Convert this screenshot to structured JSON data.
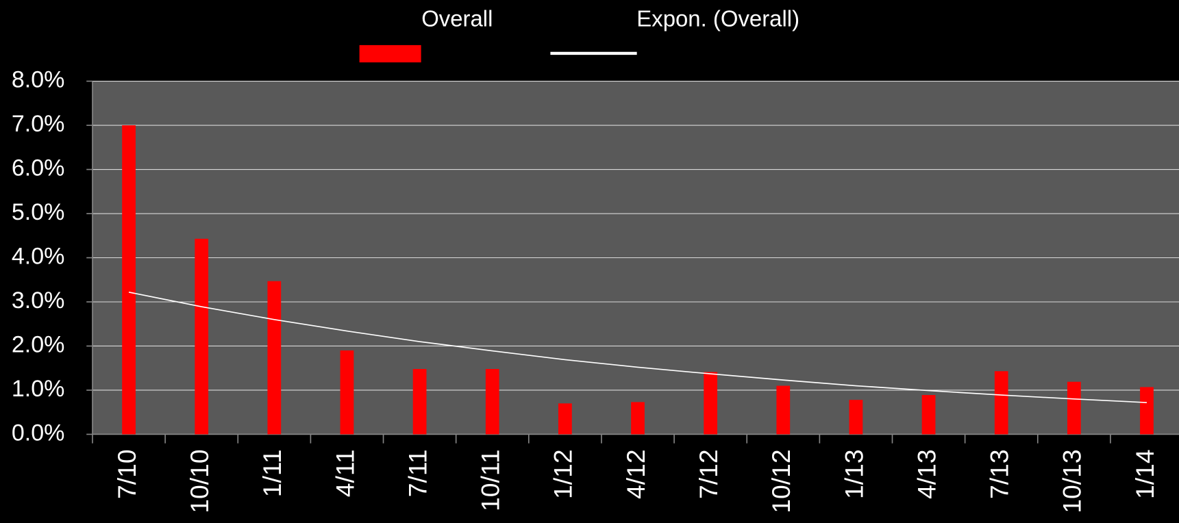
{
  "chart_data": {
    "type": "bar",
    "categories": [
      "7/10",
      "10/10",
      "1/11",
      "4/11",
      "7/11",
      "10/11",
      "1/12",
      "4/12",
      "7/12",
      "10/12",
      "1/13",
      "4/13",
      "7/13",
      "10/13",
      "1/14"
    ],
    "series": [
      {
        "name": "Overall",
        "type": "bar",
        "color": "#ff0000",
        "values": [
          7.0,
          4.43,
          3.47,
          1.9,
          1.48,
          1.48,
          0.7,
          0.73,
          1.41,
          1.1,
          0.78,
          0.89,
          1.43,
          1.19,
          1.07
        ]
      },
      {
        "name": "Expon. (Overall)",
        "type": "line",
        "color": "#ffffff",
        "values": [
          3.22,
          2.89,
          2.6,
          2.34,
          2.1,
          1.89,
          1.69,
          1.52,
          1.37,
          1.23,
          1.1,
          0.99,
          0.89,
          0.8,
          0.72
        ]
      }
    ],
    "ylim": [
      0,
      8
    ],
    "yticks": [
      {
        "value": 0,
        "label": "0.0%"
      },
      {
        "value": 1,
        "label": "1.0%"
      },
      {
        "value": 2,
        "label": "2.0%"
      },
      {
        "value": 3,
        "label": "3.0%"
      },
      {
        "value": 4,
        "label": "4.0%"
      },
      {
        "value": 5,
        "label": "5.0%"
      },
      {
        "value": 6,
        "label": "6.0%"
      },
      {
        "value": 7,
        "label": "7.0%"
      },
      {
        "value": 8,
        "label": "8.0%"
      }
    ],
    "grid": true,
    "legend": "top"
  }
}
